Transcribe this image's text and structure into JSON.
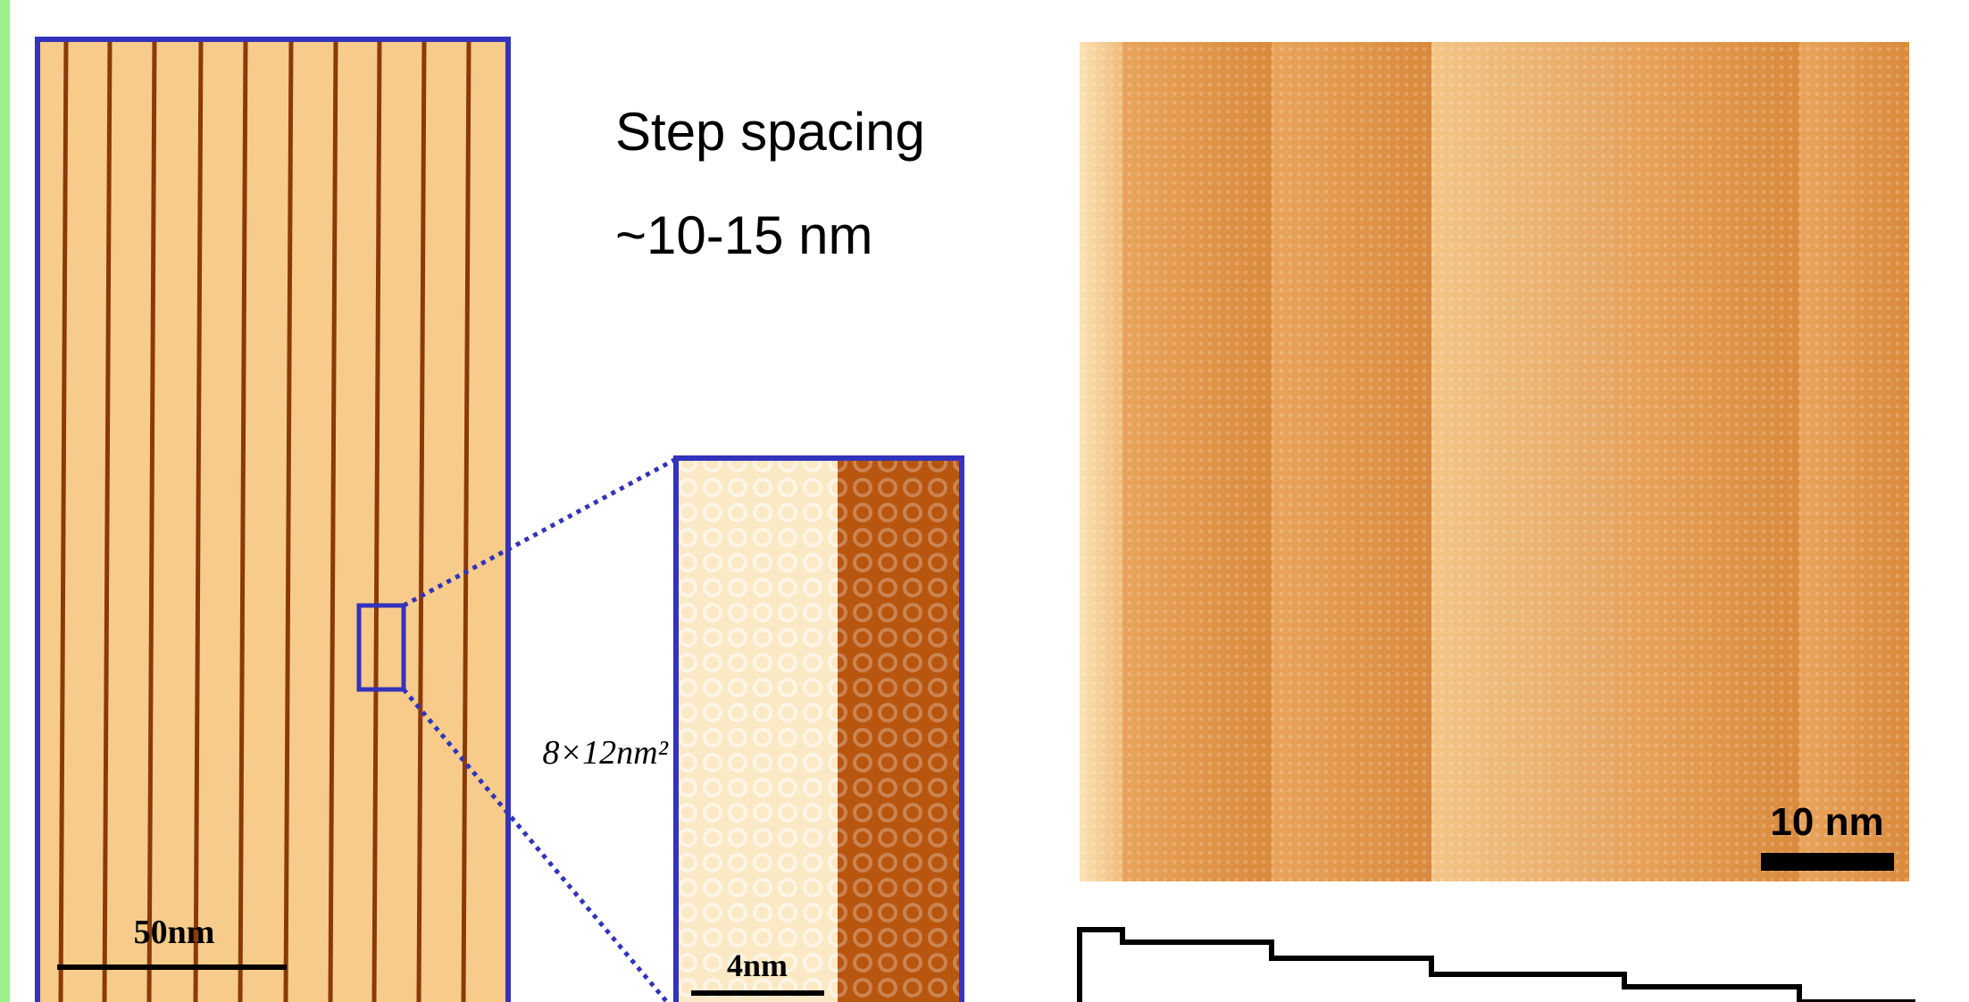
{
  "text": {
    "heading": "Step spacing",
    "range": "~10-15 nm"
  },
  "overview": {
    "scale_label": "50nm"
  },
  "inset": {
    "scale_label": "4nm",
    "size_label": "8×12nm²"
  },
  "detail": {
    "scale_label": "10 nm"
  }
}
